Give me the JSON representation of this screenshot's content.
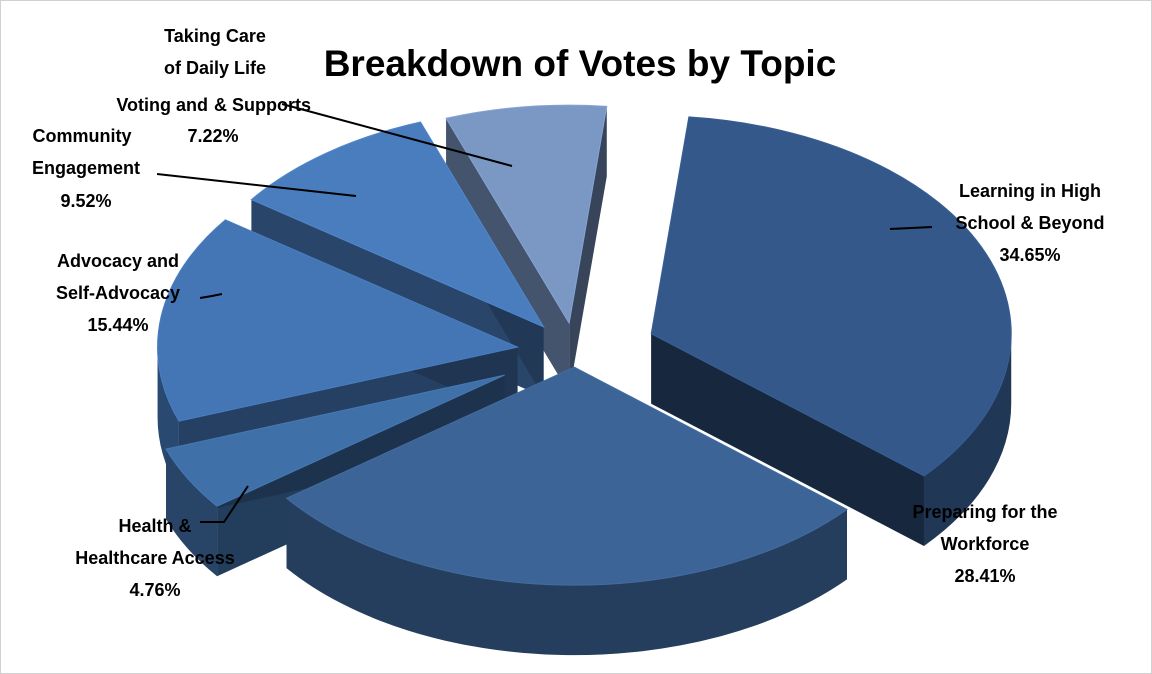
{
  "chart_data": {
    "type": "pie",
    "title": "Breakdown of Votes by Topic",
    "style": "3d-exploded",
    "slices": [
      {
        "label_lines": [
          "Learning in High",
          "School & Beyond"
        ],
        "value": 34.65,
        "value_text": "34.65%",
        "color": "#34588a"
      },
      {
        "label_lines": [
          "Preparing for the",
          "Workforce"
        ],
        "value": 28.41,
        "value_text": "28.41%",
        "color": "#3d6496"
      },
      {
        "label_lines": [
          "Health &",
          "Healthcare Access"
        ],
        "value": 4.76,
        "value_text": "4.76%",
        "color": "#4070a8"
      },
      {
        "label_lines": [
          "Advocacy and",
          "Self-Advocacy"
        ],
        "value": 15.44,
        "value_text": "15.44%",
        "color": "#4475b4"
      },
      {
        "label_lines": [
          "Voting and",
          "Community",
          "Engagement"
        ],
        "value": 9.52,
        "value_text": "9.52%",
        "color": "#4a7dbe"
      },
      {
        "label_lines": [
          "Taking Care",
          "of Daily Life",
          "& Supports"
        ],
        "value": 7.22,
        "value_text": "7.22%",
        "color": "#7b98c5"
      }
    ]
  }
}
